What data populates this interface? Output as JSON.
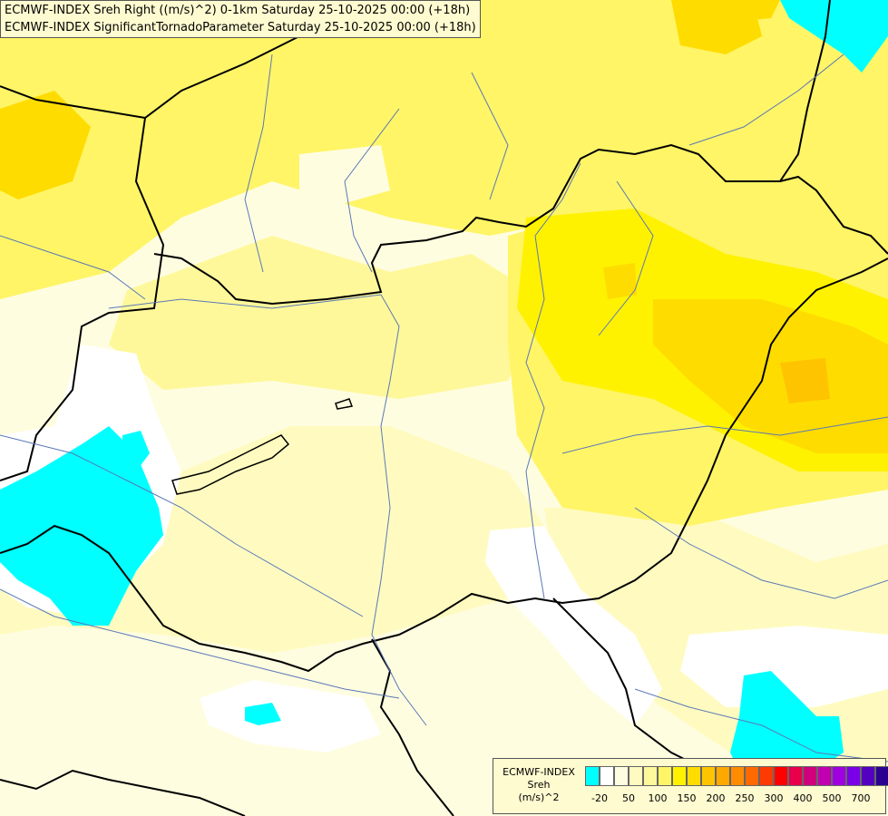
{
  "title": {
    "line1": "ECMWF-INDEX Sreh Right ((m/s)^2) 0-1km Saturday 25-10-2025 00:00 (+18h)",
    "line2": "ECMWF-INDEX SignificantTornadoParameter Saturday 25-10-2025 00:00 (+18h)"
  },
  "legend": {
    "line1": "ECMWF-INDEX",
    "line2": "Sreh",
    "line3": "(m/s)^2",
    "colors": [
      "#00ffff",
      "#ffffff",
      "#fffde0",
      "#fffbc0",
      "#fff89a",
      "#fff566",
      "#fff200",
      "#ffdc00",
      "#ffc400",
      "#ffa800",
      "#ff8c00",
      "#ff6a00",
      "#ff3a00",
      "#ff0000",
      "#e8004a",
      "#d0007c",
      "#c000b0",
      "#a000e0",
      "#7a00e8",
      "#5400c0",
      "#2a0090",
      "#000080"
    ],
    "ticks": [
      "-20",
      "50",
      "100",
      "150",
      "200",
      "250",
      "300",
      "400",
      "500",
      "700"
    ]
  },
  "map": {
    "colors": {
      "pale": "#fffde0",
      "light": "#fffbc0",
      "yellow": "#fff566",
      "bright": "#fff200",
      "gold": "#ffdc00",
      "orange": "#ffc400",
      "cyan": "#00ffff",
      "white": "#ffffff",
      "border": "#000000",
      "river": "#5a78b8"
    }
  }
}
